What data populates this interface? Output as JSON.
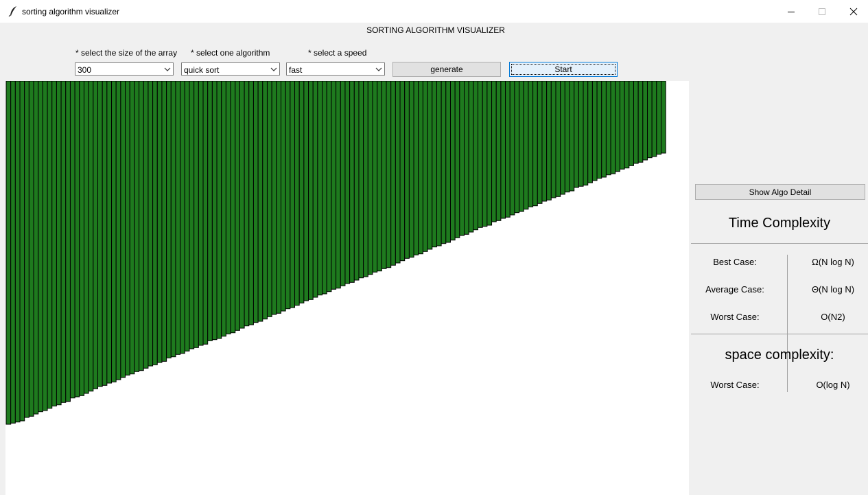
{
  "window": {
    "title": "sorting algorithm visualizer",
    "controls": [
      "minimize",
      "maximize",
      "close"
    ]
  },
  "header": {
    "title": "SORTING ALGORITHM VISUALIZER"
  },
  "controls": {
    "size_label": "* select the size of the array",
    "size_value": "300",
    "algorithm_label": "* select one algorithm",
    "algorithm_value": "quick sort",
    "speed_label": "* select a speed",
    "speed_value": "fast",
    "generate_label": "generate",
    "start_label": "Start"
  },
  "visualizer": {
    "bar_color": "#1e7a1e",
    "bar_outline": "#000000",
    "background": "#ffffff",
    "bar_count": 144,
    "max_value": 300,
    "values": [
      300,
      299,
      298,
      297,
      294,
      293,
      291,
      289,
      288,
      286,
      284,
      283,
      281,
      280,
      277,
      276,
      275,
      273,
      271,
      269,
      267,
      266,
      264,
      263,
      261,
      259,
      257,
      256,
      254,
      253,
      251,
      249,
      248,
      246,
      245,
      242,
      241,
      239,
      238,
      236,
      234,
      233,
      231,
      230,
      227,
      226,
      225,
      223,
      221,
      220,
      218,
      216,
      214,
      213,
      211,
      210,
      208,
      206,
      204,
      203,
      201,
      199,
      198,
      196,
      194,
      192,
      191,
      189,
      187,
      186,
      184,
      182,
      181,
      179,
      177,
      176,
      174,
      172,
      171,
      169,
      167,
      166,
      164,
      163,
      161,
      159,
      157,
      155,
      154,
      152,
      151,
      149,
      147,
      145,
      144,
      142,
      141,
      139,
      137,
      135,
      134,
      132,
      130,
      128,
      127,
      126,
      123,
      122,
      120,
      119,
      117,
      115,
      114,
      112,
      110,
      109,
      107,
      105,
      104,
      102,
      101,
      99,
      97,
      96,
      93,
      92,
      91,
      89,
      87,
      85,
      84,
      82,
      81,
      79,
      77,
      76,
      74,
      72,
      71,
      69,
      67,
      66,
      64,
      63
    ]
  },
  "algo_detail": {
    "button_label": "Show Algo Detail",
    "time_title": "Time Complexity",
    "best_label": "Best Case:",
    "best_value": "Ω(N log N)",
    "average_label": "Average Case:",
    "average_value": "Θ(N log N)",
    "worst_label": "Worst Case:",
    "worst_value": "O(N2)",
    "space_title": "space complexity:",
    "space_worst_label": "Worst Case:",
    "space_worst_value": "O(log N)"
  }
}
